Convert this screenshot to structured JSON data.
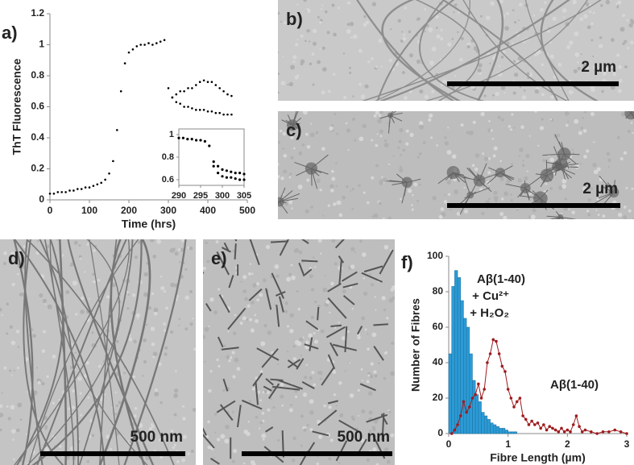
{
  "chart_data": [
    {
      "type": "scatter",
      "panel_label": "a)",
      "xlabel": "Time (hrs)",
      "ylabel": "ThT Fluorescence",
      "xlim": [
        0,
        500
      ],
      "xticks": [
        0,
        100,
        200,
        300,
        400,
        500
      ],
      "ylim": [
        0,
        1.2
      ],
      "yticks": [
        0,
        0.2,
        0.4,
        0.6,
        0.8,
        1,
        1.2
      ],
      "series": [
        {
          "color": "#000000",
          "x": [
            0,
            10,
            20,
            30,
            40,
            50,
            60,
            70,
            80,
            90,
            100,
            110,
            120,
            130,
            140,
            150,
            160,
            170,
            180,
            190,
            200,
            210,
            220,
            230,
            240,
            250,
            260,
            270,
            280,
            290,
            300,
            310,
            320,
            330,
            340,
            350,
            360,
            370,
            380,
            390,
            400,
            410,
            420,
            430,
            440,
            450,
            460
          ],
          "values": [
            0.04,
            0.04,
            0.05,
            0.05,
            0.05,
            0.06,
            0.06,
            0.07,
            0.07,
            0.08,
            0.08,
            0.09,
            0.1,
            0.11,
            0.13,
            0.17,
            0.25,
            0.45,
            0.7,
            0.88,
            0.95,
            0.97,
            0.99,
            1.0,
            1.0,
            1.01,
            1.0,
            1.01,
            1.02,
            1.03,
            0.72,
            0.66,
            0.63,
            0.62,
            0.6,
            0.6,
            0.59,
            0.58,
            0.58,
            0.58,
            0.57,
            0.57,
            0.56,
            0.56,
            0.55,
            0.55,
            0.55
          ]
        },
        {
          "color": "#000000",
          "x": [
            310,
            320,
            330,
            340,
            350,
            360,
            370,
            380,
            390,
            400,
            410,
            420,
            430,
            440,
            450,
            460
          ],
          "values": [
            0.66,
            0.68,
            0.7,
            0.7,
            0.72,
            0.72,
            0.74,
            0.76,
            0.77,
            0.76,
            0.76,
            0.74,
            0.72,
            0.7,
            0.68,
            0.67
          ]
        }
      ]
    },
    {
      "type": "scatter",
      "xlim": [
        290,
        305
      ],
      "xticks": [
        290,
        295,
        300,
        305
      ],
      "ylim": [
        0.55,
        1.05
      ],
      "yticks": [
        0.6,
        0.8,
        1
      ],
      "series": [
        {
          "color": "#000000",
          "x": [
            290,
            291,
            292,
            293,
            294,
            295,
            296,
            297,
            298,
            299,
            300,
            301,
            302,
            303,
            304,
            305
          ],
          "values": [
            0.97,
            0.97,
            0.96,
            0.96,
            0.95,
            0.95,
            0.94,
            0.9,
            0.76,
            0.72,
            0.69,
            0.68,
            0.67,
            0.66,
            0.66,
            0.65
          ]
        },
        {
          "color": "#000000",
          "x": [
            298,
            299,
            300,
            301,
            302,
            303,
            304,
            305
          ],
          "values": [
            0.72,
            0.66,
            0.63,
            0.62,
            0.62,
            0.61,
            0.6,
            0.6
          ]
        }
      ]
    },
    {
      "type": "combo",
      "panel_label": "f)",
      "xlabel": "Fibre Length (µm)",
      "ylabel": "Number of Fibres",
      "xlim": [
        0,
        3
      ],
      "xticks": [
        0,
        1,
        2,
        3
      ],
      "ylim": [
        0,
        100
      ],
      "yticks": [
        0,
        20,
        40,
        60,
        80,
        100
      ],
      "series": [
        {
          "type": "histogram",
          "color": "#2b9bd6",
          "labels": [
            "Aβ(1-40)",
            "+ Cu²⁺",
            "+ H₂O₂"
          ],
          "bins": [
            0,
            0.05,
            0.1,
            0.15,
            0.2,
            0.25,
            0.3,
            0.35,
            0.4,
            0.45,
            0.5,
            0.55,
            0.6,
            0.65,
            0.7,
            0.75,
            0.8,
            0.85,
            0.9,
            0.95,
            1.0,
            1.05,
            1.1,
            1.15
          ],
          "values": [
            45,
            83,
            92,
            88,
            75,
            65,
            60,
            45,
            30,
            22,
            18,
            12,
            10,
            8,
            6,
            5,
            4,
            3,
            3,
            2,
            1,
            1,
            1
          ]
        },
        {
          "type": "line",
          "color": "#9e1b1e",
          "labels": [
            "Aβ(1-40)"
          ],
          "x": [
            0.05,
            0.1,
            0.15,
            0.2,
            0.25,
            0.3,
            0.35,
            0.4,
            0.45,
            0.5,
            0.55,
            0.6,
            0.65,
            0.7,
            0.75,
            0.8,
            0.85,
            0.9,
            0.95,
            1.0,
            1.05,
            1.1,
            1.15,
            1.2,
            1.25,
            1.3,
            1.35,
            1.4,
            1.45,
            1.5,
            1.55,
            1.6,
            1.65,
            1.7,
            1.75,
            1.8,
            1.85,
            1.9,
            1.95,
            2.0,
            2.05,
            2.1,
            2.15,
            2.2,
            2.25,
            2.3,
            2.4,
            2.5,
            2.6,
            2.7,
            2.8,
            2.9,
            3.0
          ],
          "values": [
            0,
            2,
            5,
            10,
            18,
            12,
            15,
            20,
            22,
            28,
            20,
            25,
            40,
            45,
            53,
            52,
            45,
            38,
            35,
            25,
            20,
            15,
            18,
            20,
            10,
            8,
            5,
            7,
            5,
            6,
            3,
            5,
            2,
            4,
            3,
            2,
            1,
            3,
            1,
            2,
            1,
            5,
            10,
            4,
            1,
            2,
            1,
            0,
            1,
            1,
            2,
            1,
            0
          ]
        }
      ]
    }
  ],
  "panels": [
    {
      "label": "b)",
      "scale_bar": "2 µm"
    },
    {
      "label": "c)",
      "scale_bar": "2 µm"
    },
    {
      "label": "d)",
      "scale_bar": "500 nm"
    },
    {
      "label": "e)",
      "scale_bar": "500 nm"
    }
  ]
}
